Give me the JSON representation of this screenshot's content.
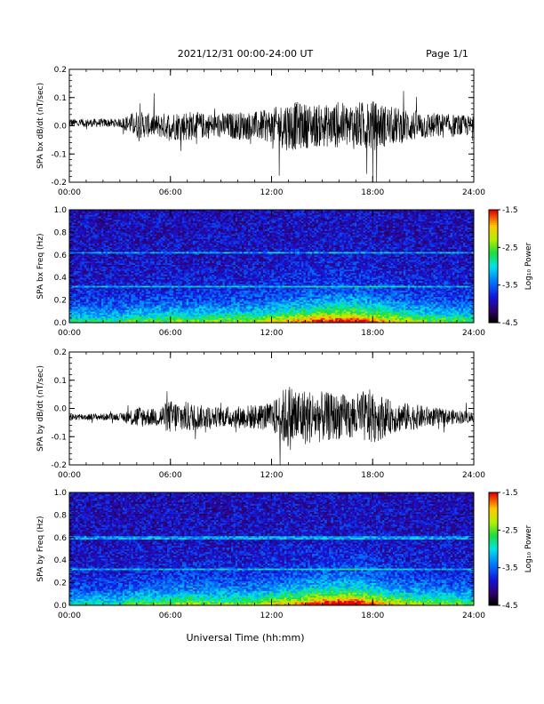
{
  "header": {
    "title": "2021/12/31  00:00-24:00 UT",
    "page": "Page 1/1"
  },
  "xlabel": "Universal Time (hh:mm)",
  "colors": {
    "trace": "#000000",
    "frame": "#000000",
    "background": "#ffffff"
  },
  "chart_data": [
    {
      "type": "line",
      "ylabel": "SPA bx dB/dt (nT/sec)",
      "xlim": [
        0,
        24
      ],
      "ylim": [
        -0.2,
        0.2
      ],
      "x_ticks": [
        "00:00",
        "06:00",
        "12:00",
        "18:00",
        "24:00"
      ],
      "y_ticks": [
        "-0.2",
        "-0.1",
        "0.0",
        "0.1",
        "0.2"
      ],
      "series": [
        {
          "x_hours": [
            0,
            1,
            2,
            3,
            4,
            5,
            6,
            7,
            8,
            9,
            10,
            11,
            12,
            13,
            14,
            15,
            16,
            17,
            18,
            19,
            20,
            21,
            22,
            23,
            24
          ],
          "amplitude": [
            0.015,
            0.015,
            0.015,
            0.015,
            0.05,
            0.04,
            0.05,
            0.055,
            0.045,
            0.045,
            0.05,
            0.05,
            0.06,
            0.09,
            0.08,
            0.075,
            0.08,
            0.085,
            0.09,
            0.07,
            0.06,
            0.05,
            0.045,
            0.04,
            0.035
          ],
          "baseline": [
            0.01,
            0.01,
            0.01,
            0.01,
            0.005,
            0.0,
            0.0,
            0.0,
            0.0,
            0.0,
            0.0,
            0.0,
            0.0,
            0.0,
            0.0,
            0.0,
            0.0,
            0.0,
            0.0,
            0.0,
            0.0,
            0.0,
            0.0,
            0.0,
            0.0
          ]
        }
      ]
    },
    {
      "type": "heatmap",
      "ylabel": "SPA bx Freq (Hz)",
      "colorbar_label": "Log₁₀ Power",
      "xlim": [
        0,
        24
      ],
      "ylim": [
        0.0,
        1.0
      ],
      "clim": [
        -4.5,
        -1.5
      ],
      "x_ticks": [
        "00:00",
        "06:00",
        "12:00",
        "18:00",
        "24:00"
      ],
      "y_ticks": [
        "0.0",
        "0.2",
        "0.4",
        "0.6",
        "0.8",
        "1.0"
      ],
      "colorbar_ticks": [
        "-1.5",
        "-2.5",
        "-3.5",
        "-4.5"
      ],
      "activity_hours": [
        0,
        1,
        2,
        3,
        4,
        5,
        6,
        7,
        8,
        9,
        10,
        11,
        12,
        13,
        14,
        15,
        16,
        17,
        18,
        19,
        20,
        21,
        22,
        23,
        24
      ],
      "activity": [
        0.2,
        0.2,
        0.2,
        0.2,
        0.3,
        0.3,
        0.35,
        0.35,
        0.35,
        0.35,
        0.4,
        0.4,
        0.5,
        0.6,
        0.7,
        0.8,
        0.85,
        0.85,
        0.7,
        0.55,
        0.45,
        0.4,
        0.35,
        0.3,
        0.3
      ],
      "line_frequencies": [
        0.62,
        0.32
      ]
    },
    {
      "type": "line",
      "ylabel": "SPA by dB/dt (nT/sec)",
      "xlim": [
        0,
        24
      ],
      "ylim": [
        -0.2,
        0.2
      ],
      "x_ticks": [
        "00:00",
        "06:00",
        "12:00",
        "18:00",
        "24:00"
      ],
      "y_ticks": [
        "-0.2",
        "-0.1",
        "0.0",
        "0.1",
        "0.2"
      ],
      "series": [
        {
          "x_hours": [
            0,
            1,
            2,
            3,
            4,
            5,
            6,
            7,
            8,
            9,
            10,
            11,
            12,
            13,
            14,
            15,
            16,
            17,
            18,
            19,
            20,
            21,
            22,
            23,
            24
          ],
          "amplitude": [
            0.012,
            0.012,
            0.012,
            0.012,
            0.04,
            0.03,
            0.06,
            0.055,
            0.04,
            0.035,
            0.04,
            0.045,
            0.05,
            0.12,
            0.1,
            0.09,
            0.08,
            0.085,
            0.1,
            0.06,
            0.05,
            0.04,
            0.03,
            0.025,
            0.02
          ],
          "baseline": [
            -0.03,
            -0.03,
            -0.03,
            -0.03,
            -0.03,
            -0.03,
            -0.03,
            -0.03,
            -0.03,
            -0.03,
            -0.03,
            -0.03,
            -0.03,
            -0.03,
            -0.03,
            -0.03,
            -0.03,
            -0.03,
            -0.03,
            -0.03,
            -0.03,
            -0.03,
            -0.03,
            -0.03,
            -0.03
          ]
        }
      ]
    },
    {
      "type": "heatmap",
      "ylabel": "SPA by Freq (Hz)",
      "colorbar_label": "Log₁₀ Power",
      "xlim": [
        0,
        24
      ],
      "ylim": [
        0.0,
        1.0
      ],
      "clim": [
        -4.5,
        -1.5
      ],
      "x_ticks": [
        "00:00",
        "06:00",
        "12:00",
        "18:00",
        "24:00"
      ],
      "y_ticks": [
        "0.0",
        "0.2",
        "0.4",
        "0.6",
        "0.8",
        "1.0"
      ],
      "colorbar_ticks": [
        "-1.5",
        "-2.5",
        "-3.5",
        "-4.5"
      ],
      "activity_hours": [
        0,
        1,
        2,
        3,
        4,
        5,
        6,
        7,
        8,
        9,
        10,
        11,
        12,
        13,
        14,
        15,
        16,
        17,
        18,
        19,
        20,
        21,
        22,
        23,
        24
      ],
      "activity": [
        0.15,
        0.15,
        0.15,
        0.15,
        0.3,
        0.3,
        0.35,
        0.4,
        0.35,
        0.35,
        0.35,
        0.4,
        0.5,
        0.6,
        0.7,
        0.85,
        0.9,
        0.9,
        0.75,
        0.55,
        0.45,
        0.4,
        0.35,
        0.3,
        0.3
      ],
      "line_frequencies": [
        0.6,
        0.32
      ]
    }
  ]
}
